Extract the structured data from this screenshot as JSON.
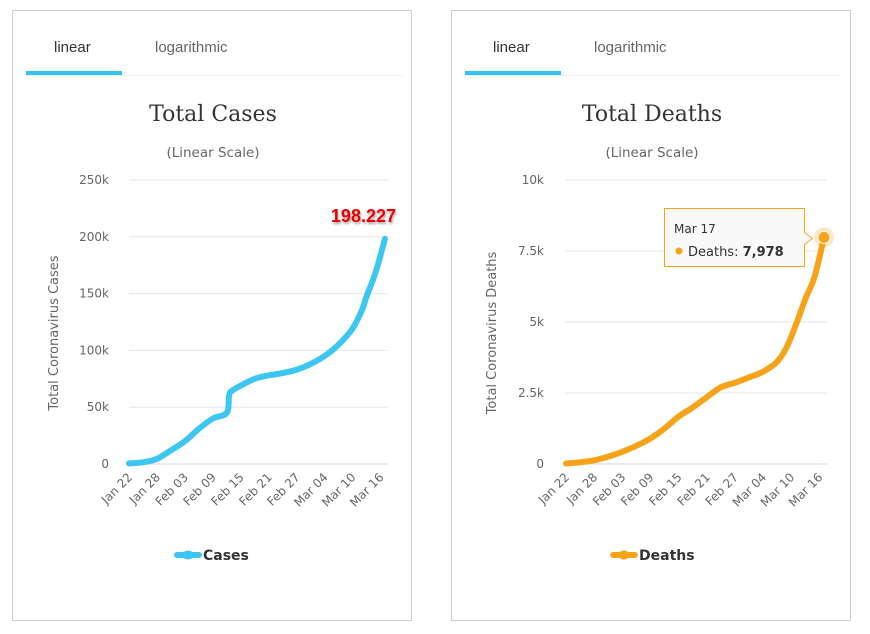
{
  "panels": [
    {
      "tabs": [
        {
          "label": "linear",
          "active": true
        },
        {
          "label": "logarithmic",
          "active": false
        }
      ],
      "accent": "#31c3f1"
    },
    {
      "tabs": [
        {
          "label": "linear",
          "active": true
        },
        {
          "label": "logarithmic",
          "active": false
        }
      ],
      "accent": "#31c3f1"
    }
  ],
  "chart_data": [
    {
      "type": "line",
      "title": "Total Cases",
      "subtitle": "(Linear Scale)",
      "xlabel": "",
      "ylabel": "Total Coronavirus Cases",
      "ylim": [
        0,
        250000
      ],
      "yticks": [
        0,
        50000,
        100000,
        150000,
        200000,
        250000
      ],
      "ytick_labels": [
        "0",
        "50k",
        "100k",
        "150k",
        "200k",
        "250k"
      ],
      "xtick_labels": [
        "Jan 22",
        "Jan 28",
        "Feb 03",
        "Feb 09",
        "Feb 15",
        "Feb 21",
        "Feb 27",
        "Mar 04",
        "Mar 10",
        "Mar 16"
      ],
      "grid": true,
      "legend": "bottom",
      "color": "#3ec6f3",
      "series": [
        {
          "name": "Cases",
          "x_days_from_jan22": [
            0,
            3,
            6,
            9,
            12,
            15,
            18,
            21,
            21.5,
            22,
            24,
            27,
            30,
            33,
            36,
            39,
            42,
            45,
            48,
            50,
            51,
            53,
            55
          ],
          "values": [
            555,
            1500,
            4500,
            12000,
            20000,
            31000,
            40000,
            45000,
            60000,
            64000,
            69000,
            75000,
            78000,
            80000,
            83000,
            88000,
            95000,
            105000,
            119000,
            135000,
            147000,
            169000,
            198227
          ]
        }
      ],
      "annotations": [
        {
          "text": "198.227",
          "x_label": "Mar 17",
          "color": "#ee0000"
        }
      ]
    },
    {
      "type": "line",
      "title": "Total Deaths",
      "subtitle": "(Linear Scale)",
      "xlabel": "",
      "ylabel": "Total Coronavirus Deaths",
      "ylim": [
        0,
        10000
      ],
      "yticks": [
        0,
        2500,
        5000,
        7500,
        10000
      ],
      "ytick_labels": [
        "0",
        "2.5k",
        "5k",
        "7.5k",
        "10k"
      ],
      "xtick_labels": [
        "Jan 22",
        "Jan 28",
        "Feb 03",
        "Feb 09",
        "Feb 15",
        "Feb 21",
        "Feb 27",
        "Mar 04",
        "Mar 10",
        "Mar 16"
      ],
      "grid": true,
      "legend": "bottom",
      "color": "#f7a31a",
      "series": [
        {
          "name": "Deaths",
          "x_days_from_jan22": [
            0,
            3,
            6,
            9,
            12,
            15,
            18,
            21,
            24,
            27,
            30,
            33,
            36,
            39,
            42,
            45,
            47,
            49,
            51,
            53,
            55
          ],
          "values": [
            17,
            60,
            130,
            260,
            430,
            640,
            900,
            1250,
            1670,
            1990,
            2350,
            2700,
            2860,
            3050,
            3250,
            3600,
            4100,
            4900,
            5800,
            6600,
            7978
          ]
        }
      ],
      "tooltip": {
        "date": "Mar 17",
        "series": "Deaths",
        "label": "Deaths: ",
        "value": "7,978"
      }
    }
  ]
}
